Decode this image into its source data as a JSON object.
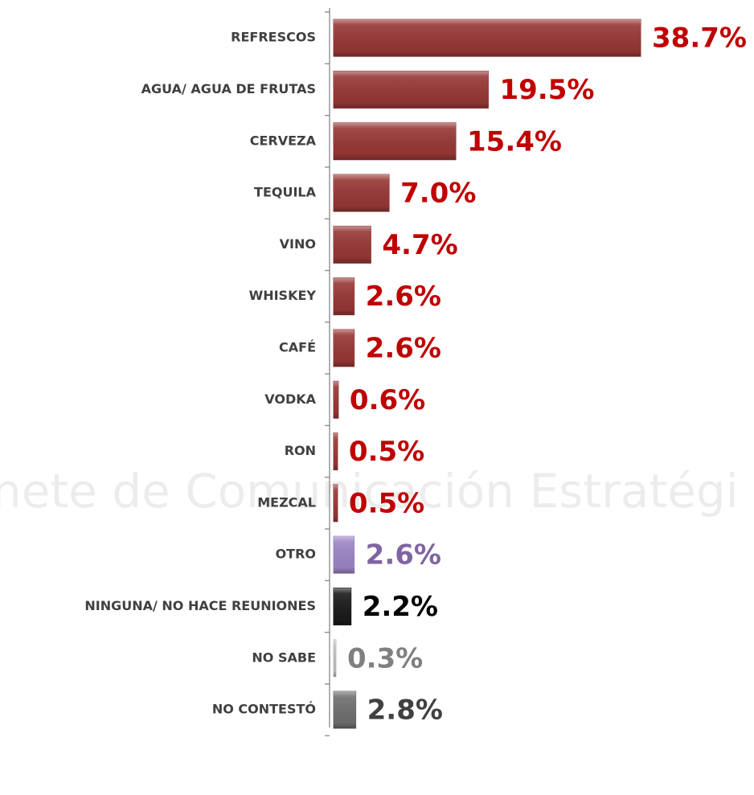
{
  "chart_data": {
    "type": "hbar",
    "watermark": "nete de Comunicación Estratégi",
    "categories": [
      "REFRESCOS",
      "AGUA/ AGUA DE FRUTAS",
      "CERVEZA",
      "TEQUILA",
      "VINO",
      "WHISKEY",
      "CAFÉ",
      "VODKA",
      "RON",
      "MEZCAL",
      "OTRO",
      "NINGUNA/ NO HACE REUNIONES",
      "NO SABE",
      "NO CONTESTÓ"
    ],
    "values": [
      38.7,
      19.5,
      15.4,
      7.0,
      4.7,
      2.6,
      2.6,
      0.6,
      0.5,
      0.5,
      2.6,
      2.2,
      0.3,
      2.8
    ],
    "value_labels": [
      "38.7%",
      "19.5%",
      "15.4%",
      "7.0%",
      "4.7%",
      "2.6%",
      "2.6%",
      "0.6%",
      "0.5%",
      "0.5%",
      "2.6%",
      "2.2%",
      "0.3%",
      "2.8%"
    ],
    "colors": [
      "#963735",
      "#963735",
      "#963735",
      "#963735",
      "#963735",
      "#963735",
      "#963735",
      "#963735",
      "#963735",
      "#963735",
      "#9b84c4",
      "#1a1a1a",
      "#bfbfbf",
      "#6e6e6e"
    ],
    "label_colors": [
      "#c00000",
      "#c00000",
      "#c00000",
      "#c00000",
      "#c00000",
      "#c00000",
      "#c00000",
      "#c00000",
      "#c00000",
      "#c00000",
      "#8064a2",
      "#000000",
      "#808080",
      "#404040"
    ]
  }
}
